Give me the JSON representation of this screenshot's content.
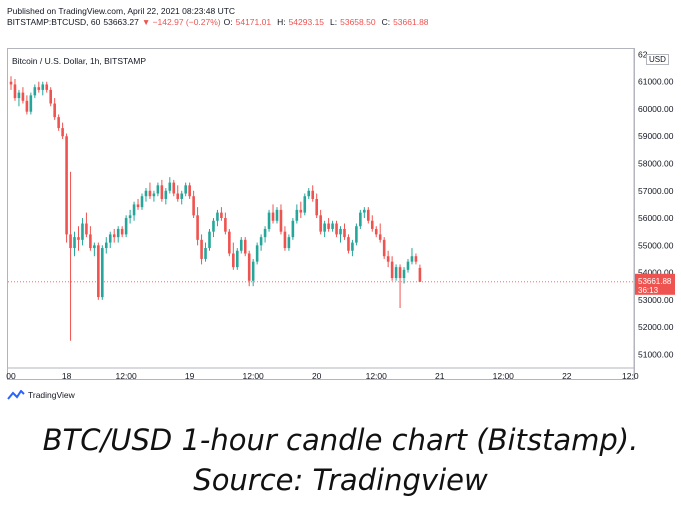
{
  "header": {
    "published": "Published on TradingView.com, April 22, 2021 08:23:48 UTC",
    "symbol": "BITSTAMP:BTCUSD, 60",
    "last": "53663.27",
    "change": "▼ −142.97 (−0.27%)",
    "open_label": "O:",
    "open": "54171.01",
    "high_label": "H:",
    "high": "54293.15",
    "low_label": "L:",
    "low": "53658.50",
    "close_label": "C:",
    "close": "53661.88"
  },
  "pane_title": "Bitcoin / U.S. Dollar, 1h, BITSTAMP",
  "currency_badge": "USD",
  "price_tag": {
    "value": "53661.88",
    "countdown": "36:13"
  },
  "logo_text": "TradingView",
  "caption": "BTC/USD 1-hour candle chart (Bitstamp). Source: Tradingview",
  "colors": {
    "up": "#26a69a",
    "down": "#ef5350",
    "axis_text": "#131722",
    "border": "#b2b5be"
  },
  "chart_data": {
    "type": "candlestick",
    "title": "Bitcoin / U.S. Dollar, 1h, BITSTAMP",
    "ylim": [
      50500,
      62200
    ],
    "y_ticks": [
      "51000.00",
      "52000.00",
      "53000.00",
      "54000.00",
      "55000.00",
      "56000.00",
      "57000.00",
      "58000.00",
      "59000.00",
      "60000.00",
      "61000.00",
      "62"
    ],
    "y_tick_values": [
      51000,
      52000,
      53000,
      54000,
      55000,
      56000,
      57000,
      58000,
      59000,
      60000,
      61000,
      62000
    ],
    "x_ticks": [
      "00",
      "18",
      "12:00",
      "19",
      "12:00",
      "20",
      "12:00",
      "21",
      "12:00",
      "22",
      "12:0"
    ],
    "x_tick_index": [
      0,
      14,
      29,
      45,
      61,
      77,
      92,
      108,
      124,
      140,
      156
    ],
    "last_price": 53661.88,
    "grid": false,
    "candles": [
      {
        "o": 61000,
        "h": 61200,
        "l": 60700,
        "c": 60900
      },
      {
        "o": 60900,
        "h": 61100,
        "l": 60300,
        "c": 60400
      },
      {
        "o": 60400,
        "h": 60700,
        "l": 60100,
        "c": 60600
      },
      {
        "o": 60600,
        "h": 60800,
        "l": 60200,
        "c": 60300
      },
      {
        "o": 60300,
        "h": 60500,
        "l": 59800,
        "c": 59900
      },
      {
        "o": 59900,
        "h": 60600,
        "l": 59800,
        "c": 60500
      },
      {
        "o": 60500,
        "h": 60900,
        "l": 60400,
        "c": 60800
      },
      {
        "o": 60800,
        "h": 61000,
        "l": 60600,
        "c": 60700
      },
      {
        "o": 60700,
        "h": 61000,
        "l": 60500,
        "c": 60900
      },
      {
        "o": 60900,
        "h": 61000,
        "l": 60600,
        "c": 60700
      },
      {
        "o": 60700,
        "h": 60800,
        "l": 60100,
        "c": 60200
      },
      {
        "o": 60200,
        "h": 60400,
        "l": 59600,
        "c": 59700
      },
      {
        "o": 59700,
        "h": 59800,
        "l": 59200,
        "c": 59300
      },
      {
        "o": 59300,
        "h": 59500,
        "l": 58900,
        "c": 59000
      },
      {
        "o": 59000,
        "h": 59100,
        "l": 55100,
        "c": 55400
      },
      {
        "o": 55400,
        "h": 57700,
        "l": 51500,
        "c": 54900
      },
      {
        "o": 54900,
        "h": 55500,
        "l": 54600,
        "c": 55300
      },
      {
        "o": 55300,
        "h": 55700,
        "l": 54800,
        "c": 55200
      },
      {
        "o": 55200,
        "h": 56000,
        "l": 55000,
        "c": 55800
      },
      {
        "o": 55800,
        "h": 56200,
        "l": 55300,
        "c": 55400
      },
      {
        "o": 55400,
        "h": 55700,
        "l": 54800,
        "c": 54900
      },
      {
        "o": 54900,
        "h": 55100,
        "l": 54600,
        "c": 55000
      },
      {
        "o": 55000,
        "h": 55100,
        "l": 53000,
        "c": 53100
      },
      {
        "o": 53100,
        "h": 55000,
        "l": 53000,
        "c": 54900
      },
      {
        "o": 54900,
        "h": 55300,
        "l": 54700,
        "c": 55100
      },
      {
        "o": 55100,
        "h": 55500,
        "l": 54900,
        "c": 55400
      },
      {
        "o": 55400,
        "h": 55600,
        "l": 55100,
        "c": 55300
      },
      {
        "o": 55300,
        "h": 55700,
        "l": 55100,
        "c": 55600
      },
      {
        "o": 55600,
        "h": 55700,
        "l": 55300,
        "c": 55400
      },
      {
        "o": 55400,
        "h": 56100,
        "l": 55300,
        "c": 56000
      },
      {
        "o": 56000,
        "h": 56300,
        "l": 55800,
        "c": 56100
      },
      {
        "o": 56100,
        "h": 56600,
        "l": 55900,
        "c": 56500
      },
      {
        "o": 56500,
        "h": 56700,
        "l": 56300,
        "c": 56400
      },
      {
        "o": 56400,
        "h": 56900,
        "l": 56300,
        "c": 56800
      },
      {
        "o": 56800,
        "h": 57100,
        "l": 56600,
        "c": 57000
      },
      {
        "o": 57000,
        "h": 57300,
        "l": 56700,
        "c": 56800
      },
      {
        "o": 56800,
        "h": 57000,
        "l": 56600,
        "c": 56900
      },
      {
        "o": 56900,
        "h": 57300,
        "l": 56800,
        "c": 57200
      },
      {
        "o": 57200,
        "h": 57400,
        "l": 56600,
        "c": 56700
      },
      {
        "o": 56700,
        "h": 57100,
        "l": 56500,
        "c": 57000
      },
      {
        "o": 57000,
        "h": 57500,
        "l": 56900,
        "c": 57300
      },
      {
        "o": 57300,
        "h": 57400,
        "l": 56800,
        "c": 56900
      },
      {
        "o": 56900,
        "h": 57200,
        "l": 56600,
        "c": 56700
      },
      {
        "o": 56700,
        "h": 57000,
        "l": 56500,
        "c": 56900
      },
      {
        "o": 56900,
        "h": 57300,
        "l": 56800,
        "c": 57200
      },
      {
        "o": 57200,
        "h": 57300,
        "l": 56700,
        "c": 56800
      },
      {
        "o": 56800,
        "h": 57000,
        "l": 56000,
        "c": 56100
      },
      {
        "o": 56100,
        "h": 56400,
        "l": 55000,
        "c": 55200
      },
      {
        "o": 55200,
        "h": 55400,
        "l": 54300,
        "c": 54500
      },
      {
        "o": 54500,
        "h": 55100,
        "l": 54400,
        "c": 54900
      },
      {
        "o": 54900,
        "h": 55600,
        "l": 54800,
        "c": 55500
      },
      {
        "o": 55500,
        "h": 56000,
        "l": 55300,
        "c": 55900
      },
      {
        "o": 55900,
        "h": 56300,
        "l": 55700,
        "c": 56200
      },
      {
        "o": 56200,
        "h": 56400,
        "l": 55900,
        "c": 56000
      },
      {
        "o": 56000,
        "h": 56200,
        "l": 55400,
        "c": 55500
      },
      {
        "o": 55500,
        "h": 55600,
        "l": 54600,
        "c": 54700
      },
      {
        "o": 54700,
        "h": 55100,
        "l": 54100,
        "c": 54200
      },
      {
        "o": 54200,
        "h": 54900,
        "l": 54100,
        "c": 54800
      },
      {
        "o": 54800,
        "h": 55300,
        "l": 54700,
        "c": 55200
      },
      {
        "o": 55200,
        "h": 55300,
        "l": 54600,
        "c": 54700
      },
      {
        "o": 54700,
        "h": 54800,
        "l": 53500,
        "c": 53700
      },
      {
        "o": 53700,
        "h": 54500,
        "l": 53500,
        "c": 54400
      },
      {
        "o": 54400,
        "h": 55100,
        "l": 54300,
        "c": 55000
      },
      {
        "o": 55000,
        "h": 55400,
        "l": 54800,
        "c": 55300
      },
      {
        "o": 55300,
        "h": 55700,
        "l": 55100,
        "c": 55600
      },
      {
        "o": 55600,
        "h": 56300,
        "l": 55500,
        "c": 56200
      },
      {
        "o": 56200,
        "h": 56500,
        "l": 55800,
        "c": 55900
      },
      {
        "o": 55900,
        "h": 56400,
        "l": 55800,
        "c": 56300
      },
      {
        "o": 56300,
        "h": 56500,
        "l": 55400,
        "c": 55500
      },
      {
        "o": 55500,
        "h": 55700,
        "l": 54800,
        "c": 54900
      },
      {
        "o": 54900,
        "h": 55400,
        "l": 54800,
        "c": 55300
      },
      {
        "o": 55300,
        "h": 56000,
        "l": 55200,
        "c": 55900
      },
      {
        "o": 55900,
        "h": 56500,
        "l": 55800,
        "c": 56300
      },
      {
        "o": 56300,
        "h": 56600,
        "l": 56000,
        "c": 56200
      },
      {
        "o": 56200,
        "h": 56900,
        "l": 56100,
        "c": 56800
      },
      {
        "o": 56800,
        "h": 57100,
        "l": 56700,
        "c": 57000
      },
      {
        "o": 57000,
        "h": 57200,
        "l": 56600,
        "c": 56700
      },
      {
        "o": 56700,
        "h": 56900,
        "l": 56000,
        "c": 56100
      },
      {
        "o": 56100,
        "h": 56300,
        "l": 55400,
        "c": 55500
      },
      {
        "o": 55500,
        "h": 55900,
        "l": 55300,
        "c": 55800
      },
      {
        "o": 55800,
        "h": 56000,
        "l": 55500,
        "c": 55600
      },
      {
        "o": 55600,
        "h": 55900,
        "l": 55500,
        "c": 55800
      },
      {
        "o": 55800,
        "h": 55900,
        "l": 55300,
        "c": 55400
      },
      {
        "o": 55400,
        "h": 55700,
        "l": 55100,
        "c": 55600
      },
      {
        "o": 55600,
        "h": 55800,
        "l": 55200,
        "c": 55300
      },
      {
        "o": 55300,
        "h": 55400,
        "l": 54700,
        "c": 54800
      },
      {
        "o": 54800,
        "h": 55200,
        "l": 54600,
        "c": 55100
      },
      {
        "o": 55100,
        "h": 55800,
        "l": 55000,
        "c": 55700
      },
      {
        "o": 55700,
        "h": 56300,
        "l": 55600,
        "c": 56200
      },
      {
        "o": 56200,
        "h": 56400,
        "l": 56000,
        "c": 56300
      },
      {
        "o": 56300,
        "h": 56400,
        "l": 55800,
        "c": 55900
      },
      {
        "o": 55900,
        "h": 56100,
        "l": 55500,
        "c": 55600
      },
      {
        "o": 55600,
        "h": 55700,
        "l": 55300,
        "c": 55400
      },
      {
        "o": 55400,
        "h": 55800,
        "l": 55100,
        "c": 55200
      },
      {
        "o": 55200,
        "h": 55300,
        "l": 54500,
        "c": 54600
      },
      {
        "o": 54600,
        "h": 54800,
        "l": 54200,
        "c": 54400
      },
      {
        "o": 54400,
        "h": 54600,
        "l": 53700,
        "c": 53800
      },
      {
        "o": 53800,
        "h": 54300,
        "l": 53700,
        "c": 54200
      },
      {
        "o": 54200,
        "h": 54300,
        "l": 52700,
        "c": 53800
      },
      {
        "o": 53800,
        "h": 54200,
        "l": 53600,
        "c": 54100
      },
      {
        "o": 54100,
        "h": 54500,
        "l": 54000,
        "c": 54400
      },
      {
        "o": 54400,
        "h": 54900,
        "l": 54300,
        "c": 54600
      },
      {
        "o": 54600,
        "h": 54700,
        "l": 54300,
        "c": 54400
      },
      {
        "o": 54171,
        "h": 54293,
        "l": 53658,
        "c": 53662
      }
    ]
  }
}
